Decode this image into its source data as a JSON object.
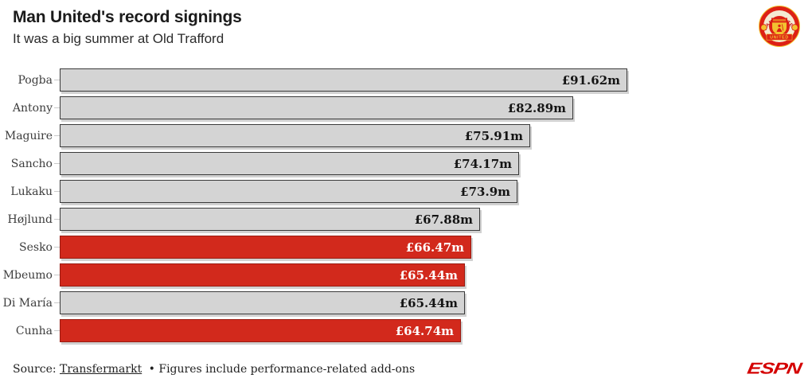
{
  "header": {
    "title": "Man United's record signings",
    "subtitle": "It was a big summer at Old Trafford"
  },
  "chart_data": {
    "type": "bar",
    "orientation": "horizontal",
    "title": "Man United's record signings",
    "subtitle": "It was a big summer at Old Trafford",
    "categories": [
      "Pogba",
      "Antony",
      "Maguire",
      "Sancho",
      "Lukaku",
      "Højlund",
      "Sesko",
      "Mbeumo",
      "Di María",
      "Cunha"
    ],
    "values": [
      91.62,
      82.89,
      75.91,
      74.17,
      73.9,
      67.88,
      66.47,
      65.44,
      65.44,
      64.74
    ],
    "value_labels": [
      "£91.62m",
      "£82.89m",
      "£75.91m",
      "£74.17m",
      "£73.9m",
      "£67.88m",
      "£66.47m",
      "£65.44m",
      "£65.44m",
      "£64.74m"
    ],
    "highlighted": [
      false,
      false,
      false,
      false,
      false,
      false,
      true,
      true,
      false,
      true
    ],
    "unit": "£m",
    "xlim": [
      0,
      91.62
    ],
    "grid": false,
    "legend": "none",
    "value_label_position": "inside-end",
    "bar_color_default": "#d4d4d4",
    "bar_color_highlight": "#d2291c"
  },
  "footer": {
    "source_prefix": "Source:",
    "source_link": "Transfermarkt",
    "note": "• Figures include performance-related add-ons"
  },
  "logos": {
    "crest_top": "MANCHESTER",
    "crest_bottom": "UNITED",
    "espn": "ESPN"
  },
  "colors": {
    "accent_red": "#d2291c",
    "bar_gray": "#d4d4d4",
    "espn_red": "#d40000",
    "crest_red": "#dd2115",
    "crest_gold": "#f2c230"
  }
}
